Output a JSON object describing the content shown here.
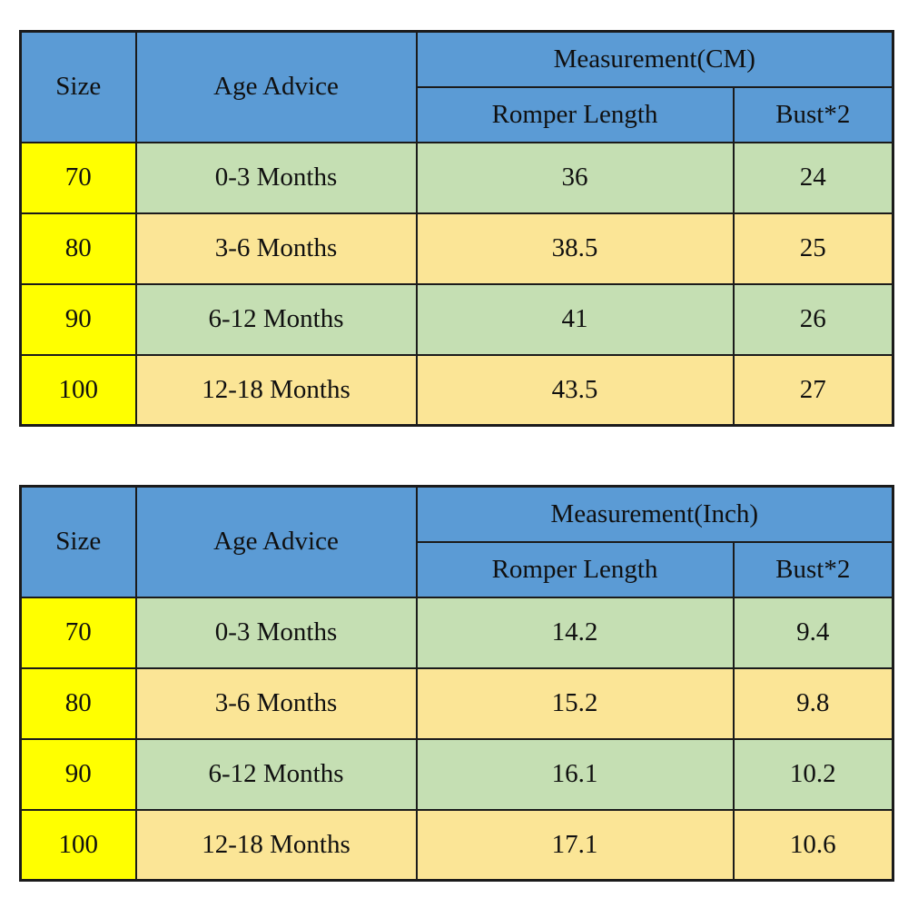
{
  "colors": {
    "header_bg": "#5B9BD5",
    "size_column_bg": "#FFFF00",
    "row_alt_green_bg": "#C5DFB3",
    "row_alt_tan_bg": "#FBE596",
    "grid_border": "#1B1B1B",
    "text": "#101010",
    "page_bg": "#FFFFFF"
  },
  "chart_data": [
    {
      "type": "table",
      "title": "Measurement(CM)",
      "group_header": "Measurement(CM)",
      "headers": {
        "size": "Size",
        "age": "Age Advice",
        "length": "Romper Length",
        "bust": "Bust*2"
      },
      "rows": [
        {
          "size": "70",
          "age": "0-3 Months",
          "length": "36",
          "bust": "24"
        },
        {
          "size": "80",
          "age": "3-6 Months",
          "length": "38.5",
          "bust": "25"
        },
        {
          "size": "90",
          "age": "6-12 Months",
          "length": "41",
          "bust": "26"
        },
        {
          "size": "100",
          "age": "12-18 Months",
          "length": "43.5",
          "bust": "27"
        }
      ]
    },
    {
      "type": "table",
      "title": "Measurement(Inch)",
      "group_header": "Measurement(Inch)",
      "headers": {
        "size": "Size",
        "age": "Age Advice",
        "length": "Romper Length",
        "bust": "Bust*2"
      },
      "rows": [
        {
          "size": "70",
          "age": "0-3 Months",
          "length": "14.2",
          "bust": "9.4"
        },
        {
          "size": "80",
          "age": "3-6 Months",
          "length": "15.2",
          "bust": "9.8"
        },
        {
          "size": "90",
          "age": "6-12 Months",
          "length": "16.1",
          "bust": "10.2"
        },
        {
          "size": "100",
          "age": "12-18 Months",
          "length": "17.1",
          "bust": "10.6"
        }
      ]
    }
  ]
}
